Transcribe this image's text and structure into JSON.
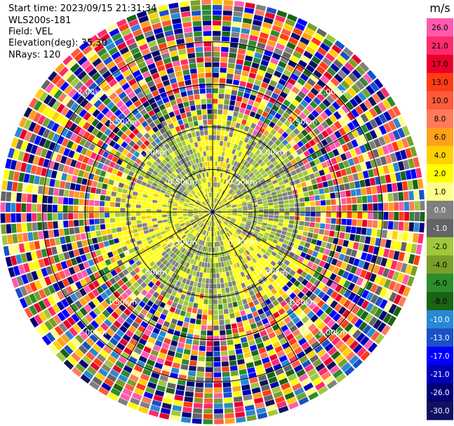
{
  "header": {
    "start_time": "Start time: 2023/09/15 21:31:34",
    "instrument": "WLS200s-181",
    "field": "Field: VEL",
    "elevation": "Elevation(deg): 35.30",
    "nrays": "NRays: 120"
  },
  "chart_data": {
    "type": "heatmap",
    "projection": "polar-ppi",
    "rays": 120,
    "range_rings_km": [
      0.5,
      1.0,
      1.5,
      2.0
    ],
    "ring_labels": [
      "0.50km",
      "1.00km",
      "1.50km",
      "2.00km"
    ],
    "max_range_km": 2.5,
    "colorbar": {
      "unit": "m/s",
      "levels": [
        "26.0",
        "21.0",
        "17.0",
        "13.0",
        "10.0",
        "8.0",
        "6.0",
        "4.0",
        "2.0",
        "1.0",
        "0.0",
        "-1.0",
        "-2.0",
        "-4.0",
        "-6.0",
        "-8.0",
        "-10.0",
        "-13.0",
        "-17.0",
        "-21.0",
        "-26.0",
        "-30.0"
      ],
      "colors": [
        "#ff5aaf",
        "#ff2a6e",
        "#e8002a",
        "#ff3b14",
        "#ff5a3c",
        "#ff7a5a",
        "#ffa01a",
        "#ffd000",
        "#ffff00",
        "#ffff8c",
        "#808080",
        "#646464",
        "#a0c83c",
        "#78a028",
        "#2d8c2d",
        "#1a6414",
        "#2888d2",
        "#1a50c8",
        "#0000ff",
        "#0000b4",
        "#000078",
        "#101060"
      ]
    },
    "pattern": "near ranges (< about 1.3 km) are mostly 0 to +2 m/s (yellow, gray) with -1 to -2 m/s (olive green) regions; far ranges show noisy values spanning the full -30 to +26 m/s scale"
  }
}
